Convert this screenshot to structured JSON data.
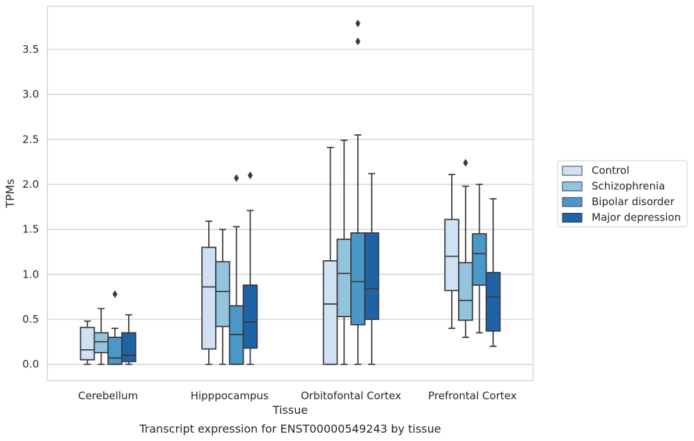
{
  "chart_data": {
    "type": "boxplot",
    "title": "Transcript expression for ENST00000549243 by tissue",
    "xlabel": "Tissue",
    "ylabel": "TPMs",
    "ylim": [
      -0.18,
      3.98
    ],
    "yticks": [
      0.0,
      0.5,
      1.0,
      1.5,
      2.0,
      2.5,
      3.0,
      3.5
    ],
    "ytick_labels": [
      "0.0",
      "0.5",
      "1.0",
      "1.5",
      "2.0",
      "2.5",
      "3.0",
      "3.5"
    ],
    "grid": true,
    "legend_position": "right",
    "categories": [
      "Cerebellum",
      "Hipppocampus",
      "Orbitofontal Cortex",
      "Prefrontal Cortex"
    ],
    "series": [
      {
        "name": "Control",
        "color": "#cfe1f2",
        "boxes": [
          {
            "min": 0.0,
            "q1": 0.05,
            "median": 0.16,
            "q3": 0.41,
            "max": 0.48,
            "outliers": []
          },
          {
            "min": 0.0,
            "q1": 0.17,
            "median": 0.86,
            "q3": 1.3,
            "max": 1.59,
            "outliers": []
          },
          {
            "min": 0.0,
            "q1": 0.0,
            "median": 0.67,
            "q3": 1.15,
            "max": 2.41,
            "outliers": []
          },
          {
            "min": 0.4,
            "q1": 0.82,
            "median": 1.2,
            "q3": 1.61,
            "max": 2.11,
            "outliers": []
          }
        ]
      },
      {
        "name": "Schizophrenia",
        "color": "#93c4de",
        "boxes": [
          {
            "min": 0.0,
            "q1": 0.13,
            "median": 0.25,
            "q3": 0.35,
            "max": 0.62,
            "outliers": []
          },
          {
            "min": 0.0,
            "q1": 0.42,
            "median": 0.81,
            "q3": 1.14,
            "max": 1.5,
            "outliers": []
          },
          {
            "min": 0.0,
            "q1": 0.53,
            "median": 1.01,
            "q3": 1.39,
            "max": 2.49,
            "outliers": []
          },
          {
            "min": 0.3,
            "q1": 0.49,
            "median": 0.71,
            "q3": 1.13,
            "max": 1.98,
            "outliers": [
              2.24
            ]
          }
        ]
      },
      {
        "name": "Bipolar disorder",
        "color": "#4a98c9",
        "boxes": [
          {
            "min": 0.0,
            "q1": 0.0,
            "median": 0.07,
            "q3": 0.3,
            "max": 0.4,
            "outliers": [
              0.78
            ]
          },
          {
            "min": 0.0,
            "q1": 0.0,
            "median": 0.33,
            "q3": 0.65,
            "max": 1.53,
            "outliers": [
              2.07
            ]
          },
          {
            "min": 0.0,
            "q1": 0.44,
            "median": 0.92,
            "q3": 1.46,
            "max": 2.55,
            "outliers": [
              3.59,
              3.79
            ]
          },
          {
            "min": 0.35,
            "q1": 0.88,
            "median": 1.23,
            "q3": 1.45,
            "max": 2.0,
            "outliers": []
          }
        ]
      },
      {
        "name": "Major depression",
        "color": "#1d63a6",
        "boxes": [
          {
            "min": 0.0,
            "q1": 0.03,
            "median": 0.1,
            "q3": 0.35,
            "max": 0.55,
            "outliers": []
          },
          {
            "min": 0.0,
            "q1": 0.18,
            "median": 0.47,
            "q3": 0.88,
            "max": 1.71,
            "outliers": [
              2.1
            ]
          },
          {
            "min": 0.0,
            "q1": 0.5,
            "median": 0.84,
            "q3": 1.46,
            "max": 2.12,
            "outliers": []
          },
          {
            "min": 0.2,
            "q1": 0.37,
            "median": 0.75,
            "q3": 1.02,
            "max": 1.84,
            "outliers": []
          }
        ]
      }
    ]
  }
}
